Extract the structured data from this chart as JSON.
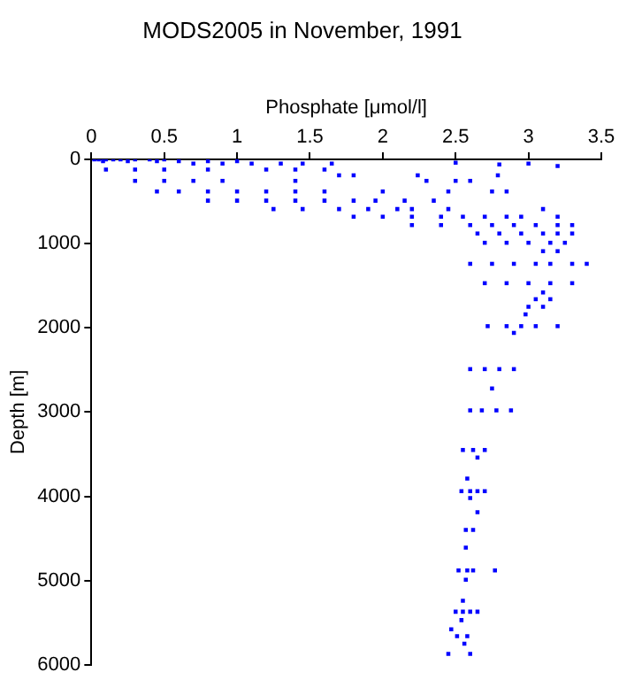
{
  "chart_data": {
    "type": "scatter",
    "title": "MODS2005 in November, 1991",
    "xlabel": "Phosphate [μmol/l]",
    "ylabel": "Depth [m]",
    "xlim": [
      0,
      3.5
    ],
    "xticks": [
      0,
      0.5,
      1,
      1.5,
      2,
      2.5,
      3,
      3.5
    ],
    "ylim": [
      6000,
      0
    ],
    "yticks": [
      0,
      1000,
      2000,
      3000,
      4000,
      5000,
      6000
    ],
    "grid": false,
    "legend": false,
    "marker": "square",
    "series": [
      {
        "color": "#0000ff",
        "x": [
          0.02,
          0.05,
          0.1,
          0.15,
          0.2,
          0.3,
          0.4,
          0.5,
          0.08,
          0.25,
          0.45,
          0.6,
          0.8,
          1.0,
          0.7,
          0.9,
          1.1,
          1.3,
          1.45,
          1.65,
          2.5,
          2.8,
          3.0,
          3.2,
          0.1,
          0.3,
          0.5,
          0.8,
          1.2,
          1.4,
          1.6,
          1.7,
          1.8,
          2.24,
          2.79,
          0.3,
          0.5,
          0.7,
          0.9,
          1.4,
          2.3,
          2.5,
          2.6,
          0.45,
          0.6,
          0.8,
          1.0,
          1.2,
          1.4,
          1.6,
          2.0,
          2.45,
          2.75,
          2.85,
          0.8,
          1.0,
          1.2,
          1.4,
          1.6,
          1.8,
          1.95,
          2.15,
          2.35,
          1.25,
          1.45,
          1.7,
          1.9,
          2.1,
          2.2,
          2.45,
          3.1,
          1.8,
          2.0,
          2.2,
          2.4,
          2.55,
          2.7,
          2.85,
          2.95,
          3.2,
          2.2,
          2.4,
          2.6,
          2.75,
          2.9,
          3.05,
          3.2,
          3.3,
          2.65,
          2.8,
          2.95,
          3.1,
          3.2,
          3.3,
          2.7,
          2.85,
          3.0,
          3.15,
          3.25,
          3.1,
          3.2,
          2.6,
          2.75,
          2.9,
          3.05,
          3.15,
          3.3,
          3.4,
          2.7,
          2.85,
          3.0,
          3.15,
          3.3,
          3.1,
          3.05,
          3.15,
          3.0,
          3.1,
          2.98,
          2.72,
          2.85,
          2.95,
          3.05,
          3.2,
          2.9,
          2.6,
          2.7,
          2.8,
          2.9,
          2.75,
          2.6,
          2.68,
          2.78,
          2.88,
          2.55,
          2.62,
          2.7,
          2.65,
          2.58,
          2.54,
          2.6,
          2.65,
          2.7,
          2.6,
          2.65,
          2.57,
          2.62,
          2.57,
          2.52,
          2.58,
          2.62,
          2.77,
          2.57,
          2.55,
          2.5,
          2.55,
          2.6,
          2.65,
          2.54,
          2.47,
          2.51,
          2.58,
          2.56,
          2.45,
          2.6
        ],
        "values": [
          0,
          0,
          0,
          0,
          0,
          0,
          0,
          0,
          20,
          20,
          20,
          20,
          20,
          20,
          50,
          50,
          50,
          50,
          50,
          50,
          40,
          60,
          50,
          80,
          120,
          120,
          120,
          120,
          120,
          120,
          120,
          190,
          190,
          190,
          190,
          255,
          255,
          255,
          255,
          255,
          255,
          255,
          255,
          380,
          380,
          380,
          380,
          380,
          380,
          380,
          380,
          380,
          380,
          380,
          490,
          490,
          490,
          490,
          490,
          490,
          490,
          490,
          490,
          590,
          590,
          590,
          590,
          590,
          590,
          590,
          590,
          680,
          680,
          680,
          680,
          680,
          680,
          680,
          680,
          680,
          780,
          780,
          780,
          780,
          780,
          780,
          780,
          780,
          880,
          880,
          880,
          880,
          880,
          880,
          990,
          990,
          990,
          990,
          990,
          1090,
          1090,
          1240,
          1240,
          1240,
          1240,
          1240,
          1240,
          1240,
          1470,
          1470,
          1470,
          1470,
          1470,
          1580,
          1660,
          1660,
          1750,
          1750,
          1840,
          1980,
          1980,
          1980,
          1980,
          1980,
          2060,
          2490,
          2490,
          2490,
          2490,
          2720,
          2980,
          2980,
          2980,
          2980,
          3450,
          3450,
          3450,
          3540,
          3790,
          3940,
          3940,
          3940,
          3940,
          4020,
          4190,
          4400,
          4400,
          4610,
          4880,
          4880,
          4880,
          4880,
          4990,
          5240,
          5370,
          5370,
          5370,
          5370,
          5470,
          5580,
          5660,
          5660,
          5750,
          5870,
          5870
        ]
      }
    ]
  }
}
